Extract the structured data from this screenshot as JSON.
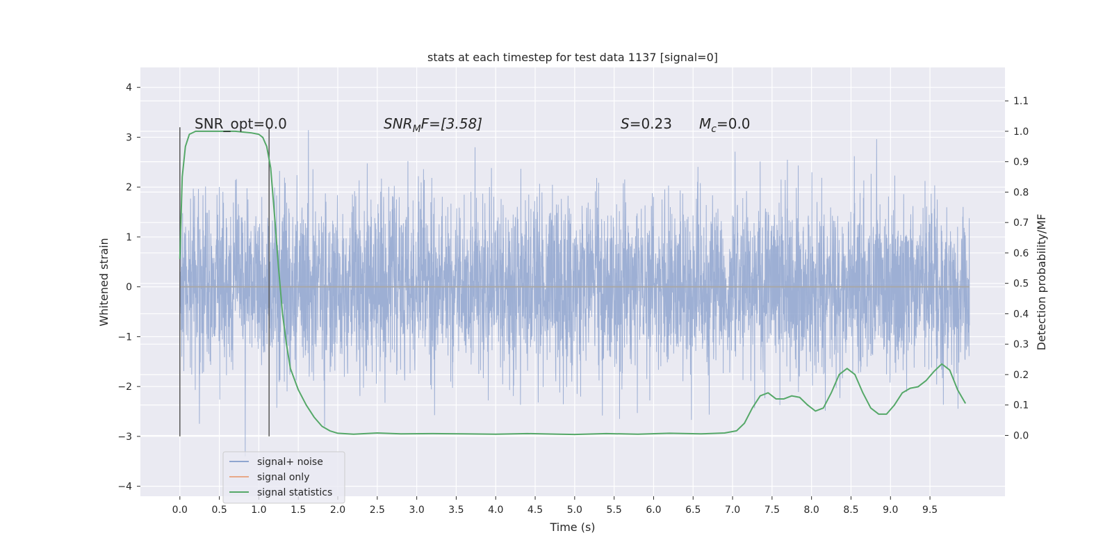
{
  "chart_data": {
    "type": "line",
    "title": "stats at each timestep for test data 1137 [signal=0]",
    "xlabel": "Time (s)",
    "ylabel": "Whitened strain",
    "y2label": "Detection probability/MF",
    "xlim": [
      -0.5,
      10.45
    ],
    "ylim": [
      -4.2,
      4.4
    ],
    "y2lim": [
      -0.2,
      1.21
    ],
    "xticks": [
      "0.0",
      "0.5",
      "1.0",
      "1.5",
      "2.0",
      "2.5",
      "3.0",
      "3.5",
      "4.0",
      "4.5",
      "5.0",
      "5.5",
      "6.0",
      "6.5",
      "7.0",
      "7.5",
      "8.0",
      "8.5",
      "9.0",
      "9.5"
    ],
    "yticks": [
      "4",
      "3",
      "2",
      "1",
      "0",
      "−1",
      "−2",
      "−3",
      "−4"
    ],
    "y2ticks": [
      "1.1",
      "1.0",
      "0.9",
      "0.8",
      "0.7",
      "0.6",
      "0.5",
      "0.4",
      "0.3",
      "0.2",
      "0.1",
      "0.0"
    ],
    "grid": true,
    "legend_position": "lower-left",
    "annotations": {
      "snr_opt": "SNR_opt=0.0",
      "snr_mf_pre": "SNR",
      "snr_mf_sub": "M",
      "snr_mf_post": "F=[3.58]",
      "s_pre": "S",
      "s_post": "=0.23",
      "mc_pre": "M",
      "mc_sub": "c",
      "mc_post": "=0.0"
    },
    "vlines": [
      0.0,
      1.13
    ],
    "series": [
      {
        "name": "signal+ noise",
        "color": "#8fa5cf",
        "axis": "left",
        "noise_sigma": 0.9,
        "range": [
          0.0,
          10.0
        ]
      },
      {
        "name": "signal only",
        "color": "#e8a888",
        "axis": "left",
        "values_constant": 0.0
      },
      {
        "name": "signal statistics",
        "color": "#55a868",
        "axis": "right",
        "x": [
          0.0,
          0.03,
          0.07,
          0.12,
          0.2,
          0.3,
          0.5,
          0.7,
          0.9,
          1.0,
          1.05,
          1.1,
          1.15,
          1.2,
          1.25,
          1.3,
          1.35,
          1.4,
          1.5,
          1.6,
          1.7,
          1.8,
          1.9,
          2.0,
          2.2,
          2.5,
          2.8,
          3.2,
          3.6,
          4.0,
          4.4,
          4.8,
          5.0,
          5.4,
          5.8,
          6.2,
          6.6,
          6.9,
          7.05,
          7.15,
          7.25,
          7.35,
          7.45,
          7.55,
          7.65,
          7.75,
          7.85,
          7.95,
          8.05,
          8.15,
          8.25,
          8.35,
          8.45,
          8.55,
          8.65,
          8.75,
          8.85,
          8.95,
          9.05,
          9.15,
          9.25,
          9.35,
          9.45,
          9.55,
          9.65,
          9.75,
          9.85,
          9.95
        ],
        "values": [
          0.58,
          0.85,
          0.95,
          0.99,
          1.0,
          1.0,
          1.0,
          1.0,
          0.995,
          0.99,
          0.98,
          0.95,
          0.88,
          0.72,
          0.55,
          0.4,
          0.3,
          0.22,
          0.15,
          0.1,
          0.06,
          0.03,
          0.015,
          0.007,
          0.004,
          0.008,
          0.005,
          0.006,
          0.005,
          0.004,
          0.006,
          0.004,
          0.003,
          0.006,
          0.004,
          0.007,
          0.005,
          0.008,
          0.015,
          0.04,
          0.09,
          0.13,
          0.14,
          0.12,
          0.12,
          0.13,
          0.125,
          0.1,
          0.08,
          0.09,
          0.14,
          0.2,
          0.22,
          0.2,
          0.14,
          0.09,
          0.07,
          0.07,
          0.1,
          0.14,
          0.155,
          0.16,
          0.18,
          0.21,
          0.235,
          0.215,
          0.15,
          0.105
        ]
      }
    ]
  }
}
